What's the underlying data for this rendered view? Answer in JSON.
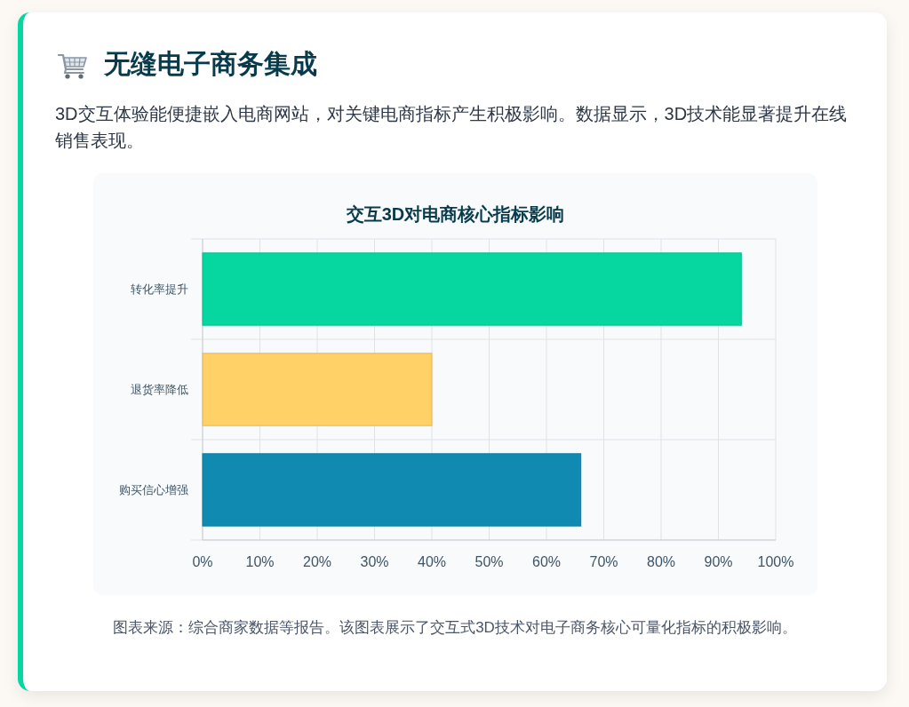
{
  "chart_data": {
    "type": "bar",
    "orientation": "horizontal",
    "title": "交互3D对电商核心指标影响",
    "categories": [
      "转化率提升",
      "退货率降低",
      "购买信心增强"
    ],
    "values": [
      94,
      40,
      66
    ],
    "colors": [
      "#06d6a0",
      "#ffd166",
      "#118ab2"
    ],
    "xlim": [
      0,
      100
    ],
    "xticks": [
      {
        "value": 0,
        "label": "0%"
      },
      {
        "value": 10,
        "label": "10%"
      },
      {
        "value": 20,
        "label": "20%"
      },
      {
        "value": 30,
        "label": "30%"
      },
      {
        "value": 40,
        "label": "40%"
      },
      {
        "value": 50,
        "label": "50%"
      },
      {
        "value": 60,
        "label": "60%"
      },
      {
        "value": 70,
        "label": "70%"
      },
      {
        "value": 80,
        "label": "80%"
      },
      {
        "value": 90,
        "label": "90%"
      },
      {
        "value": 100,
        "label": "100%"
      }
    ],
    "grid": true,
    "annotations": [
      "无缝电子商务集成",
      "3D交互体验能便捷嵌入电商网站，对关键电商指标产生积极影响。数据显示，3D技术能显著提升在线销售表现。",
      "图表来源：综合商家数据等报告。该图表展示了交互式3D技术对电子商务核心可量化指标的积极影响。"
    ]
  }
}
